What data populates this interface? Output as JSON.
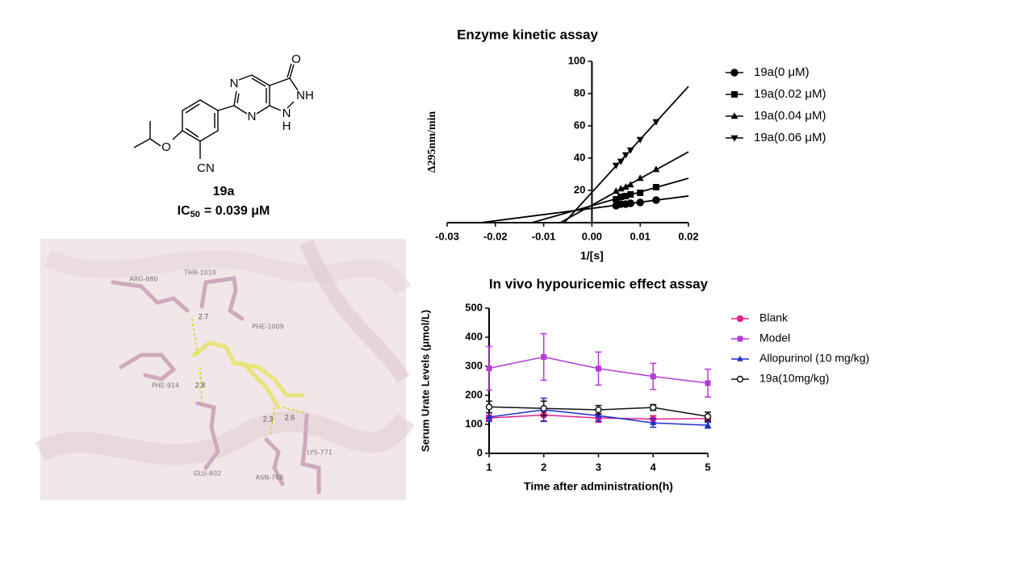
{
  "structure": {
    "atoms": [
      "O",
      "N",
      "NH",
      "N",
      "H",
      "O",
      "CN"
    ],
    "compound": "19a",
    "ic50": {
      "symbol": "IC",
      "subscript": "50",
      "value": "= 0.039 μM"
    }
  },
  "docking": {
    "residues": [
      "ARG-880",
      "THR-1010",
      "PHE-1009",
      "PHE-914",
      "GLU-802",
      "ASN-768",
      "LYS-771"
    ],
    "distances": [
      "2.7",
      "2.8",
      "2.3",
      "2.6"
    ]
  },
  "chart_data": [
    {
      "type": "scatter",
      "title": "Enzyme kinetic assay",
      "x_label": "1/[s]",
      "y_label": "Δ295nm/min",
      "x": [
        0.005,
        0.006,
        0.007,
        0.008,
        0.01,
        0.0133
      ],
      "series": [
        {
          "name": "19a(0 μM)",
          "color": "#000000",
          "marker": "circle",
          "values": [
            10.5,
            11.5,
            11.5,
            12,
            12.5,
            14
          ]
        },
        {
          "name": "19a(0.02 μM)",
          "color": "#000000",
          "marker": "square",
          "values": [
            14.5,
            16,
            16.5,
            17.5,
            18.5,
            22
          ]
        },
        {
          "name": "19a(0.04 μM)",
          "color": "#000000",
          "marker": "triangle-up",
          "values": [
            19.5,
            21,
            22,
            23.5,
            27.5,
            33
          ]
        },
        {
          "name": "19a(0.06 μM)",
          "color": "#000000",
          "marker": "triangle-down",
          "values": [
            35.5,
            38,
            42,
            45,
            51.5,
            62.5
          ]
        }
      ],
      "xlim": [
        -0.03,
        0.02
      ],
      "ylim": [
        0,
        100
      ],
      "xticks": [
        -0.03,
        -0.02,
        -0.01,
        {
          "value": 0,
          "label": "0.00"
        },
        0.01,
        0.02
      ],
      "yticks": [
        20,
        40,
        60,
        80,
        100
      ],
      "fit_lines": true,
      "legend": "right"
    },
    {
      "type": "line",
      "title": "In vivo hypouricemic effect assay",
      "x_label": "Time after administration(h)",
      "y_label": "Serum Urate Levels (μmol/L)",
      "x": [
        1,
        2,
        3,
        4,
        5
      ],
      "series": [
        {
          "name": "Blank",
          "color": "#e8208f",
          "marker": "circle",
          "values": [
            122,
            132,
            122,
            118,
            120
          ],
          "errors": [
            10,
            20,
            15,
            12,
            10
          ]
        },
        {
          "name": "Model",
          "color": "#b43bd6",
          "marker": "square",
          "values": [
            293,
            332,
            292,
            265,
            242
          ],
          "errors": [
            75,
            80,
            57,
            45,
            48
          ]
        },
        {
          "name": "Allopurinol (10 mg/kg)",
          "color": "#1a2fcf",
          "marker": "triangle-up",
          "values": [
            125,
            150,
            130,
            105,
            97
          ],
          "errors": [
            15,
            40,
            20,
            15,
            10
          ]
        },
        {
          "name": "19a(10mg/kg)",
          "color": "#111111",
          "marker": "open-circle",
          "values": [
            160,
            155,
            150,
            158,
            127
          ],
          "errors": [
            20,
            25,
            15,
            10,
            15
          ]
        }
      ],
      "xlim": [
        1,
        5
      ],
      "ylim": [
        0,
        500
      ],
      "xticks": [
        1,
        2,
        3,
        4,
        5
      ],
      "yticks": [
        0,
        100,
        200,
        300,
        400,
        500
      ],
      "legend": "right"
    }
  ]
}
